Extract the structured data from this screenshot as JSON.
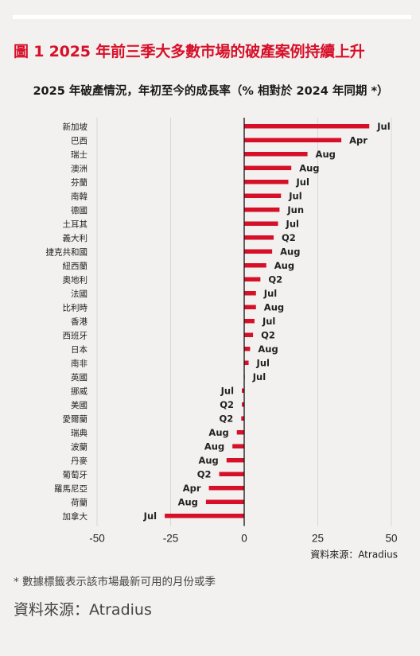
{
  "figure": {
    "title": "圖 1 2025 年前三季大多數市場的破產案例持續上升",
    "subtitle": "2025 年破產情況，年初至今的成長率（% 相對於 2024 年同期 *）",
    "footnote": "* 數據標籤表示該市場最新可用的月份或季",
    "footer_source": "資料來源：Atradius"
  },
  "colors": {
    "bar": "#d7102a",
    "title": "#d7102a",
    "axis": "#111111",
    "grid": "#d9d7d4",
    "background": "#f2f1ef"
  },
  "chart_data": {
    "type": "bar",
    "orientation": "horizontal",
    "source_note": "資料來源：Atradius",
    "xlim": [
      -50,
      50
    ],
    "xticks": [
      -50,
      -25,
      0,
      25,
      50
    ],
    "grid": true,
    "categories": [
      "新加坡",
      "巴西",
      "瑞士",
      "澳洲",
      "芬蘭",
      "南韓",
      "德國",
      "土耳其",
      "義大利",
      "捷克共和國",
      "紐西蘭",
      "奧地利",
      "法國",
      "比利時",
      "香港",
      "西班牙",
      "日本",
      "南非",
      "英國",
      "挪威",
      "美國",
      "愛爾蘭",
      "瑞典",
      "波蘭",
      "丹麥",
      "葡萄牙",
      "羅馬尼亞",
      "荷蘭",
      "加拿大"
    ],
    "values": [
      42.5,
      33,
      21.5,
      16,
      15,
      12.5,
      12,
      11.5,
      10,
      9.5,
      7.5,
      5.5,
      4,
      4,
      3.5,
      3,
      2,
      1.5,
      0.2,
      -0.8,
      -0.8,
      -1,
      -2.5,
      -4,
      -6,
      -8.5,
      -12,
      -13,
      -27
    ],
    "labels": [
      "Jul",
      "Apr",
      "Aug",
      "Aug",
      "Jul",
      "Jul",
      "Jun",
      "Jul",
      "Q2",
      "Aug",
      "Aug",
      "Q2",
      "Jul",
      "Aug",
      "Jul",
      "Q2",
      "Aug",
      "Jul",
      "Jul",
      "Jul",
      "Q2",
      "Q2",
      "Aug",
      "Aug",
      "Aug",
      "Q2",
      "Apr",
      "Aug",
      "Jul"
    ]
  }
}
